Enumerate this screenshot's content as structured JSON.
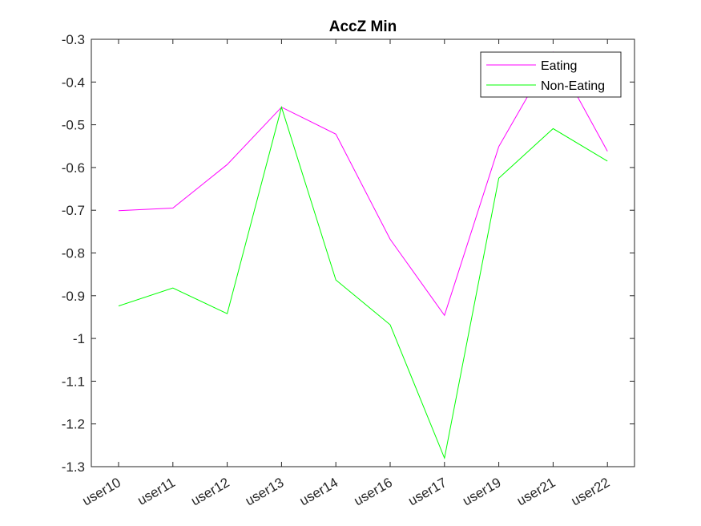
{
  "chart_data": {
    "type": "line",
    "title": "AccZ Min",
    "xlabel": "",
    "ylabel": "",
    "categories": [
      "user10",
      "user11",
      "user12",
      "user13",
      "user14",
      "user16",
      "user17",
      "user19",
      "user21",
      "user22"
    ],
    "ylim": [
      -1.3,
      -0.3
    ],
    "yticks": [
      -0.3,
      -0.4,
      -0.5,
      -0.6,
      -0.7,
      -0.8,
      -0.9,
      -1,
      -1.1,
      -1.2,
      -1.3
    ],
    "ytick_labels": [
      "-0.3",
      "-0.4",
      "-0.5",
      "-0.6",
      "-0.7",
      "-0.8",
      "-0.9",
      "-1",
      "-1.1",
      "-1.2",
      "-1.3"
    ],
    "grid": false,
    "legend_position": "top-right",
    "series": [
      {
        "name": "Eating",
        "color": "#ff00ff",
        "values": [
          -0.701,
          -0.695,
          -0.593,
          -0.459,
          -0.522,
          -0.768,
          -0.946,
          -0.551,
          -0.33,
          -0.562
        ]
      },
      {
        "name": "Non-Eating",
        "color": "#00ff00",
        "values": [
          -0.924,
          -0.882,
          -0.942,
          -0.459,
          -0.863,
          -0.968,
          -1.28,
          -0.625,
          -0.509,
          -0.585
        ]
      }
    ]
  }
}
